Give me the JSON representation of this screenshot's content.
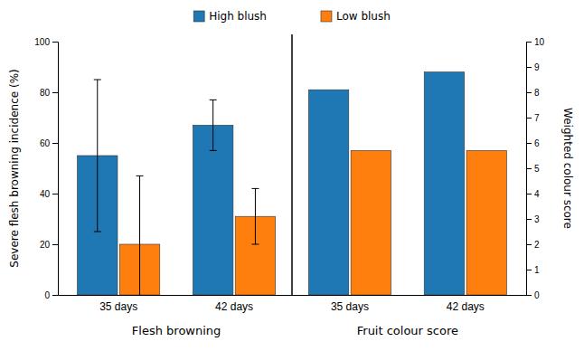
{
  "chart_data": {
    "type": "bar",
    "categories": [
      "35 days",
      "42 days",
      "35 days",
      "42 days"
    ],
    "series": [
      {
        "name": "High blush",
        "values": [
          55,
          67,
          81,
          88
        ],
        "errors": [
          30,
          10,
          null,
          null
        ]
      },
      {
        "name": "Low blush",
        "values": [
          20,
          31,
          57,
          57
        ],
        "errors": [
          27,
          11,
          null,
          null
        ]
      }
    ],
    "ylabel": "Severe flesh browning incidence (%)",
    "y2label": "Weighted colour score",
    "ylim": [
      0,
      100
    ],
    "yticks": [
      0,
      20,
      40,
      60,
      80,
      100
    ],
    "y2lim": [
      0,
      10
    ],
    "y2ticks": [
      0,
      1,
      2,
      3,
      4,
      5,
      6,
      7,
      8,
      9,
      10
    ],
    "annotations": [
      "Flesh browning",
      "Fruit colour score"
    ],
    "legend": "top",
    "grid": false
  }
}
